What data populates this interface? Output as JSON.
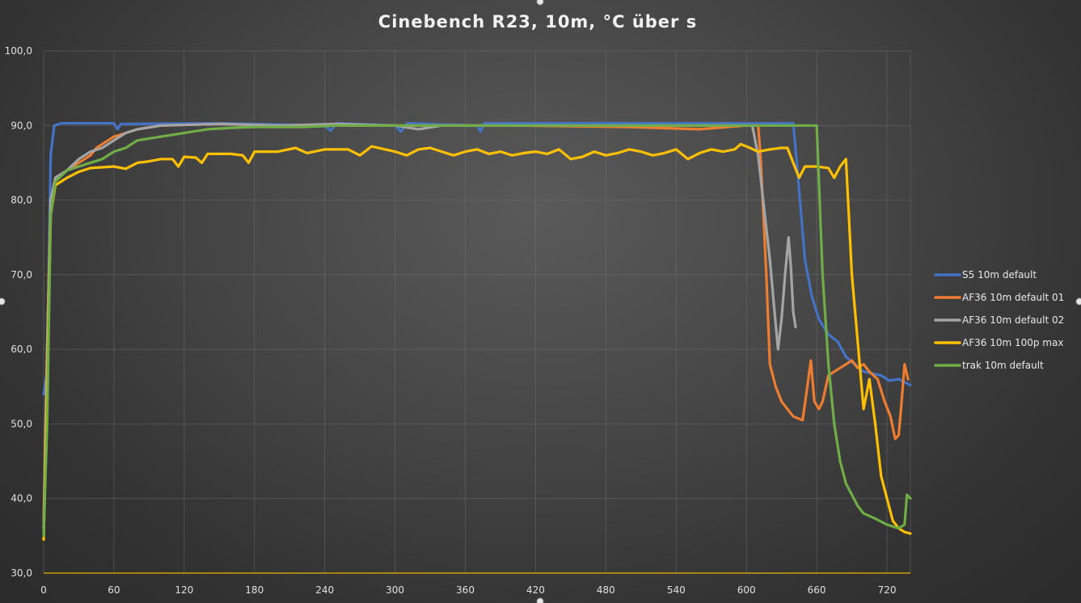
{
  "chart_data": {
    "type": "line",
    "title": "Cinebench R23, 10m, °C über s",
    "xlabel": "",
    "ylabel": "",
    "xlim": [
      0,
      740
    ],
    "ylim": [
      30,
      100
    ],
    "x_ticks": [
      0,
      60,
      120,
      180,
      240,
      300,
      360,
      420,
      480,
      540,
      600,
      660,
      720
    ],
    "x_tick_labels": [
      "0",
      "60",
      "120",
      "180",
      "240",
      "300",
      "360",
      "420",
      "480",
      "540",
      "600",
      "660",
      "720"
    ],
    "y_ticks": [
      30,
      40,
      50,
      60,
      70,
      80,
      90,
      100
    ],
    "y_tick_labels": [
      "30,0",
      "40,0",
      "50,0",
      "60,0",
      "70,0",
      "80,0",
      "90,0",
      "100,0"
    ],
    "grid": true,
    "legend_position": "right",
    "baseline_color": "#e8b400",
    "series": [
      {
        "name": "S5 10m default",
        "color": "#4472c4",
        "points": [
          [
            0,
            54
          ],
          [
            3,
            57
          ],
          [
            6,
            86
          ],
          [
            9,
            90
          ],
          [
            15,
            90.3
          ],
          [
            60,
            90.3
          ],
          [
            63,
            89.5
          ],
          [
            66,
            90.2
          ],
          [
            150,
            90.3
          ],
          [
            240,
            90
          ],
          [
            245,
            89.3
          ],
          [
            250,
            90.3
          ],
          [
            300,
            90
          ],
          [
            305,
            89.2
          ],
          [
            310,
            90.3
          ],
          [
            370,
            90
          ],
          [
            373,
            89.2
          ],
          [
            376,
            90.3
          ],
          [
            480,
            90.3
          ],
          [
            600,
            90.3
          ],
          [
            640,
            90.3
          ],
          [
            643,
            85
          ],
          [
            650,
            72
          ],
          [
            656,
            67
          ],
          [
            662,
            64
          ],
          [
            670,
            62
          ],
          [
            678,
            61
          ],
          [
            685,
            59
          ],
          [
            700,
            57
          ],
          [
            715,
            56.5
          ],
          [
            722,
            55.8
          ],
          [
            730,
            56
          ],
          [
            740,
            55.2
          ]
        ]
      },
      {
        "name": "AF36 10m default 01",
        "color": "#ed7d31",
        "points": [
          [
            0,
            37
          ],
          [
            3,
            60
          ],
          [
            6,
            80
          ],
          [
            10,
            83
          ],
          [
            20,
            84
          ],
          [
            30,
            85
          ],
          [
            40,
            86
          ],
          [
            45,
            87
          ],
          [
            55,
            88
          ],
          [
            60,
            88.5
          ],
          [
            70,
            89
          ],
          [
            80,
            89.5
          ],
          [
            100,
            90
          ],
          [
            150,
            90.2
          ],
          [
            200,
            90
          ],
          [
            300,
            90
          ],
          [
            400,
            90
          ],
          [
            500,
            89.8
          ],
          [
            560,
            89.5
          ],
          [
            600,
            90
          ],
          [
            610,
            90
          ],
          [
            612,
            86
          ],
          [
            617,
            70
          ],
          [
            620,
            58
          ],
          [
            625,
            55
          ],
          [
            630,
            53
          ],
          [
            640,
            51
          ],
          [
            648,
            50.5
          ],
          [
            652,
            55
          ],
          [
            655,
            58.5
          ],
          [
            658,
            53
          ],
          [
            662,
            52
          ],
          [
            665,
            53
          ],
          [
            670,
            56.5
          ],
          [
            675,
            57
          ],
          [
            680,
            57.5
          ],
          [
            685,
            58
          ],
          [
            690,
            58.5
          ],
          [
            695,
            57.5
          ],
          [
            700,
            58
          ],
          [
            705,
            57
          ],
          [
            712,
            56
          ],
          [
            718,
            53
          ],
          [
            723,
            51
          ],
          [
            727,
            48
          ],
          [
            730,
            48.5
          ],
          [
            732,
            52
          ],
          [
            735,
            58
          ],
          [
            738,
            56
          ]
        ]
      },
      {
        "name": "AF36 10m default 02",
        "color": "#a5a5a5",
        "points": [
          [
            0,
            36
          ],
          [
            3,
            60
          ],
          [
            6,
            80
          ],
          [
            10,
            83
          ],
          [
            20,
            84
          ],
          [
            30,
            85.5
          ],
          [
            40,
            86.5
          ],
          [
            50,
            87
          ],
          [
            60,
            88
          ],
          [
            70,
            89
          ],
          [
            80,
            89.5
          ],
          [
            100,
            90
          ],
          [
            150,
            90.2
          ],
          [
            200,
            90
          ],
          [
            250,
            90.2
          ],
          [
            300,
            90
          ],
          [
            320,
            89.5
          ],
          [
            340,
            90
          ],
          [
            400,
            90
          ],
          [
            450,
            90
          ],
          [
            500,
            90
          ],
          [
            550,
            90
          ],
          [
            590,
            90
          ],
          [
            605,
            90
          ],
          [
            610,
            86
          ],
          [
            615,
            79
          ],
          [
            620,
            72
          ],
          [
            624,
            65
          ],
          [
            627,
            60
          ],
          [
            630,
            64
          ],
          [
            633,
            70
          ],
          [
            636,
            75
          ],
          [
            638,
            71
          ],
          [
            640,
            65
          ],
          [
            642,
            63
          ]
        ]
      },
      {
        "name": "AF36 10m 100p max",
        "color": "#ffc000",
        "points": [
          [
            0,
            34.5
          ],
          [
            3,
            55
          ],
          [
            6,
            78
          ],
          [
            10,
            82
          ],
          [
            20,
            83
          ],
          [
            30,
            83.8
          ],
          [
            40,
            84.3
          ],
          [
            60,
            84.5
          ],
          [
            70,
            84.2
          ],
          [
            80,
            85
          ],
          [
            90,
            85.2
          ],
          [
            100,
            85.5
          ],
          [
            110,
            85.5
          ],
          [
            115,
            84.5
          ],
          [
            120,
            85.8
          ],
          [
            130,
            85.7
          ],
          [
            135,
            85
          ],
          [
            140,
            86.2
          ],
          [
            160,
            86.2
          ],
          [
            170,
            86
          ],
          [
            175,
            85
          ],
          [
            180,
            86.5
          ],
          [
            200,
            86.5
          ],
          [
            215,
            87
          ],
          [
            225,
            86.3
          ],
          [
            240,
            86.8
          ],
          [
            260,
            86.8
          ],
          [
            270,
            86
          ],
          [
            280,
            87.2
          ],
          [
            300,
            86.5
          ],
          [
            310,
            86
          ],
          [
            320,
            86.8
          ],
          [
            330,
            87
          ],
          [
            340,
            86.5
          ],
          [
            350,
            86
          ],
          [
            360,
            86.5
          ],
          [
            370,
            86.8
          ],
          [
            380,
            86.2
          ],
          [
            390,
            86.5
          ],
          [
            400,
            86
          ],
          [
            410,
            86.3
          ],
          [
            420,
            86.5
          ],
          [
            430,
            86.2
          ],
          [
            440,
            86.8
          ],
          [
            450,
            85.5
          ],
          [
            460,
            85.8
          ],
          [
            470,
            86.5
          ],
          [
            480,
            86
          ],
          [
            490,
            86.3
          ],
          [
            500,
            86.8
          ],
          [
            510,
            86.5
          ],
          [
            520,
            86
          ],
          [
            530,
            86.3
          ],
          [
            540,
            86.8
          ],
          [
            550,
            85.5
          ],
          [
            560,
            86.3
          ],
          [
            570,
            86.8
          ],
          [
            580,
            86.5
          ],
          [
            590,
            86.8
          ],
          [
            595,
            87.5
          ],
          [
            600,
            87.2
          ],
          [
            610,
            86.5
          ],
          [
            620,
            86.8
          ],
          [
            630,
            87
          ],
          [
            635,
            87
          ],
          [
            640,
            85
          ],
          [
            645,
            83
          ],
          [
            650,
            84.5
          ],
          [
            660,
            84.5
          ],
          [
            670,
            84.3
          ],
          [
            675,
            83
          ],
          [
            680,
            84.5
          ],
          [
            685,
            85.5
          ],
          [
            690,
            70
          ],
          [
            700,
            52
          ],
          [
            705,
            56
          ],
          [
            710,
            50
          ],
          [
            715,
            43
          ],
          [
            720,
            40
          ],
          [
            725,
            37
          ],
          [
            730,
            36
          ],
          [
            735,
            35.5
          ],
          [
            740,
            35.3
          ]
        ]
      },
      {
        "name": "trak 10m default",
        "color": "#70ad47",
        "points": [
          [
            0,
            35
          ],
          [
            3,
            50
          ],
          [
            6,
            78
          ],
          [
            10,
            82.5
          ],
          [
            20,
            84
          ],
          [
            30,
            84.5
          ],
          [
            40,
            85
          ],
          [
            50,
            85.5
          ],
          [
            60,
            86.5
          ],
          [
            70,
            87
          ],
          [
            80,
            88
          ],
          [
            100,
            88.5
          ],
          [
            120,
            89
          ],
          [
            140,
            89.5
          ],
          [
            160,
            89.7
          ],
          [
            180,
            89.8
          ],
          [
            200,
            89.8
          ],
          [
            220,
            89.8
          ],
          [
            250,
            90
          ],
          [
            300,
            90
          ],
          [
            350,
            90
          ],
          [
            400,
            90
          ],
          [
            450,
            90
          ],
          [
            500,
            90
          ],
          [
            550,
            90
          ],
          [
            600,
            90
          ],
          [
            620,
            90
          ],
          [
            645,
            90
          ],
          [
            660,
            90
          ],
          [
            662,
            82
          ],
          [
            665,
            70
          ],
          [
            670,
            58
          ],
          [
            675,
            50
          ],
          [
            680,
            45
          ],
          [
            685,
            42
          ],
          [
            690,
            40.5
          ],
          [
            695,
            39
          ],
          [
            700,
            38
          ],
          [
            710,
            37.3
          ],
          [
            720,
            36.5
          ],
          [
            730,
            36
          ],
          [
            735,
            36.5
          ],
          [
            737,
            40.5
          ],
          [
            740,
            40
          ]
        ]
      }
    ]
  }
}
